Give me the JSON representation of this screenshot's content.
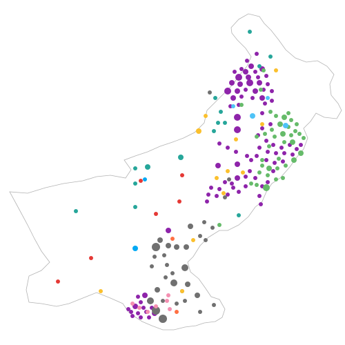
{
  "map": {
    "outline_color": "#b3b3b3",
    "background": "#ffffff",
    "categories": [
      {
        "id": "purple",
        "color": "#8e24aa"
      },
      {
        "id": "green",
        "color": "#66bb6a"
      },
      {
        "id": "gray",
        "color": "#707070"
      },
      {
        "id": "yellow",
        "color": "#fbc02d"
      },
      {
        "id": "teal",
        "color": "#26a69a"
      },
      {
        "id": "blue",
        "color": "#03a9f4"
      },
      {
        "id": "red",
        "color": "#e53935"
      },
      {
        "id": "orange",
        "color": "#ff7043"
      },
      {
        "id": "pink",
        "color": "#f48fb1"
      },
      {
        "id": "cyan",
        "color": "#4fc3f7"
      }
    ]
  }
}
